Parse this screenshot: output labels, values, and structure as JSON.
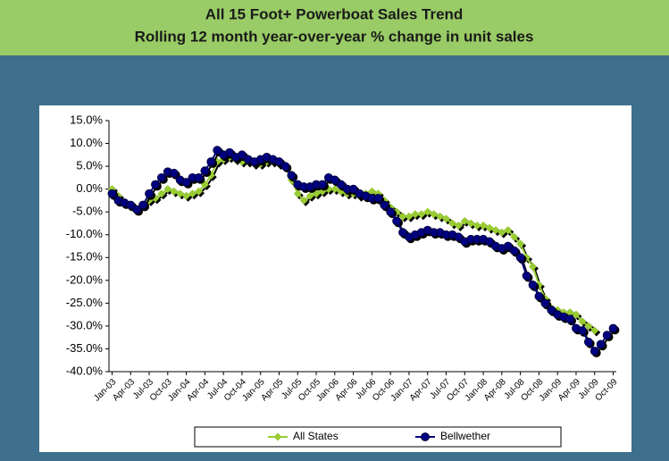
{
  "chart_data": {
    "type": "line",
    "title": "All 15 Foot+ Powerboat Sales Trend",
    "subtitle": "Rolling 12 month year-over-year % change in unit sales",
    "categories": [
      "Jan-03",
      null,
      null,
      "Apr-03",
      null,
      null,
      "Jul-03",
      null,
      null,
      "Oct-03",
      null,
      null,
      "Jan-04",
      null,
      null,
      "Apr-04",
      null,
      null,
      "Jul-04",
      null,
      null,
      "Oct-04",
      null,
      null,
      "Jan-05",
      null,
      null,
      "Apr-05",
      null,
      null,
      "Jul-05",
      null,
      null,
      "Oct-05",
      null,
      null,
      "Jan-06",
      null,
      null,
      "Apr-06",
      null,
      null,
      "Jul-06",
      null,
      null,
      "Oct-06",
      null,
      null,
      "Jan-07",
      null,
      null,
      "Apr-07",
      null,
      null,
      "Jul-07",
      null,
      null,
      "Oct-07",
      null,
      null,
      "Jan-08",
      null,
      null,
      "Apr-08",
      null,
      null,
      "Jul-08",
      null,
      null,
      "Oct-08",
      null,
      null,
      "Jan-09",
      null,
      null,
      "Apr-09",
      null,
      null,
      "Jul-09",
      null,
      null,
      "Oct-09"
    ],
    "series": [
      {
        "name": "All States",
        "color": "#99cc33",
        "marker": "diamond",
        "values": [
          0,
          -1.5,
          -3,
          -3.5,
          -4.5,
          -3.5,
          -2.5,
          -2,
          -1,
          0,
          -0.5,
          -1,
          -1.5,
          -1,
          -0.5,
          1,
          3,
          6,
          6.5,
          7,
          6.5,
          6,
          6,
          5.5,
          5.5,
          6,
          6,
          5.5,
          5,
          2,
          -1,
          -2.5,
          -1.5,
          -1,
          -0.5,
          0,
          0,
          -0.5,
          -1,
          -1,
          -1.5,
          -1,
          -0.5,
          -1,
          -2.5,
          -4,
          -5,
          -6,
          -6,
          -5.5,
          -5.5,
          -5,
          -5.5,
          -6,
          -6.5,
          -7.5,
          -8,
          -7,
          -7.5,
          -8,
          -8,
          -8.5,
          -9,
          -9.5,
          -9,
          -10.5,
          -12,
          -15,
          -17,
          -21,
          -24,
          -26,
          -26.5,
          -27,
          -27,
          -27.5,
          -29,
          -30,
          -31,
          null,
          null,
          null
        ]
      },
      {
        "name": "Bellwether",
        "color": "#000080",
        "marker": "circle",
        "values": [
          -1,
          -2.5,
          -3,
          -3.5,
          -4.5,
          -3.5,
          -1,
          1,
          2.5,
          3.8,
          3.5,
          2,
          1.5,
          2.5,
          2.5,
          4,
          6,
          8.5,
          7.5,
          8,
          7,
          7.5,
          6.5,
          6,
          6.5,
          7,
          6.5,
          6,
          5,
          3,
          1,
          0.5,
          0.5,
          1,
          1,
          2.5,
          2,
          1,
          0,
          0,
          -1,
          -1.5,
          -2,
          -2,
          -3.5,
          -5,
          -7,
          -9.5,
          -10.5,
          -10,
          -9.5,
          -9,
          -9.5,
          -9.5,
          -10,
          -10,
          -10.5,
          -11.5,
          -11,
          -11,
          -11,
          -11.5,
          -12.5,
          -13,
          -12.5,
          -13.5,
          -15,
          -19,
          -21,
          -23.5,
          -25,
          -26.5,
          -27.5,
          -28,
          -28.5,
          -30.5,
          -31,
          -33.5,
          -35.5,
          -34,
          -32,
          -30.5
        ]
      }
    ],
    "ylim": [
      -40,
      15
    ],
    "yticks": [
      {
        "value": -40,
        "label": "-40.0%"
      },
      {
        "value": -35,
        "label": "-35.0%"
      },
      {
        "value": -30,
        "label": "-30.0%"
      },
      {
        "value": -25,
        "label": "-25.0%"
      },
      {
        "value": -20,
        "label": "-20.0%"
      },
      {
        "value": -15,
        "label": "-15.0%"
      },
      {
        "value": -10,
        "label": "-10.0%"
      },
      {
        "value": -5,
        "label": "-5.0%"
      },
      {
        "value": 0,
        "label": "0.0%"
      },
      {
        "value": 5,
        "label": "5.0%"
      },
      {
        "value": 10,
        "label": "10.0%"
      },
      {
        "value": 15,
        "label": "15.0%"
      }
    ],
    "grid": false,
    "legend": "bottom"
  }
}
